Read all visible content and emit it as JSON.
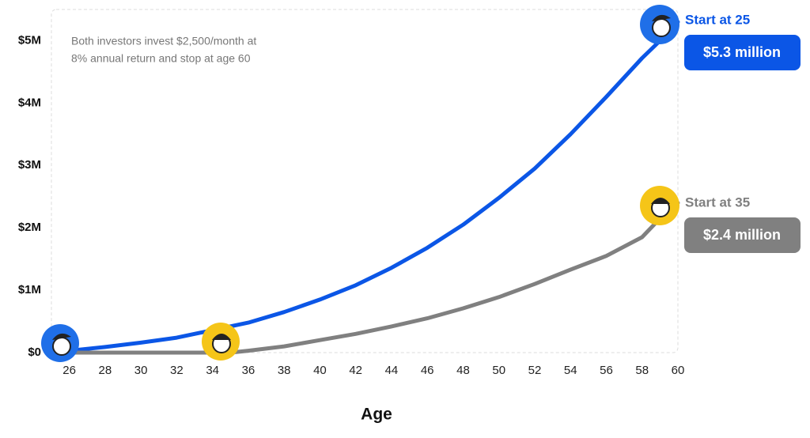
{
  "chart_data": {
    "type": "line",
    "note": [
      "Both investors invest $2,500/month at",
      "8% annual return and stop at age 60"
    ],
    "x_label": "Age",
    "xlim": [
      25,
      60
    ],
    "xticks": [
      26,
      28,
      30,
      32,
      34,
      36,
      38,
      40,
      42,
      44,
      46,
      48,
      50,
      52,
      54,
      56,
      58,
      60
    ],
    "ylim": [
      0,
      5.5
    ],
    "yticks": [
      {
        "value": 0,
        "label": "$0"
      },
      {
        "value": 1,
        "label": "$1M"
      },
      {
        "value": 2,
        "label": "$2M"
      },
      {
        "value": 3,
        "label": "$3M"
      },
      {
        "value": 4,
        "label": "$4M"
      },
      {
        "value": 5,
        "label": "$5M"
      }
    ],
    "grid": false,
    "series": [
      {
        "name": "Start at 25",
        "color": "#0b56e6",
        "x": [
          25,
          26,
          28,
          30,
          32,
          34,
          36,
          38,
          40,
          42,
          44,
          46,
          48,
          50,
          52,
          54,
          56,
          58,
          59,
          60
        ],
        "values": [
          0,
          0.03,
          0.09,
          0.16,
          0.24,
          0.36,
          0.48,
          0.65,
          0.85,
          1.08,
          1.36,
          1.68,
          2.05,
          2.48,
          2.95,
          3.5,
          4.1,
          4.72,
          5.0,
          5.3
        ],
        "value_labels": [
          null,
          null,
          null,
          null,
          null,
          null,
          null,
          null,
          null,
          null,
          null,
          null,
          null,
          null,
          null,
          null,
          null,
          null,
          null,
          "$5.3 million"
        ]
      },
      {
        "name": "Start at 35",
        "color": "#808080",
        "x": [
          25,
          34,
          35,
          36,
          38,
          40,
          42,
          44,
          46,
          48,
          50,
          52,
          54,
          56,
          58,
          59,
          60
        ],
        "values": [
          0,
          0,
          0,
          0.03,
          0.1,
          0.2,
          0.3,
          0.42,
          0.55,
          0.71,
          0.89,
          1.1,
          1.33,
          1.55,
          1.85,
          2.15,
          2.4
        ],
        "value_labels": [
          null,
          null,
          null,
          null,
          null,
          null,
          null,
          null,
          null,
          null,
          null,
          null,
          null,
          null,
          null,
          null,
          "$2.4 million"
        ]
      }
    ]
  }
}
